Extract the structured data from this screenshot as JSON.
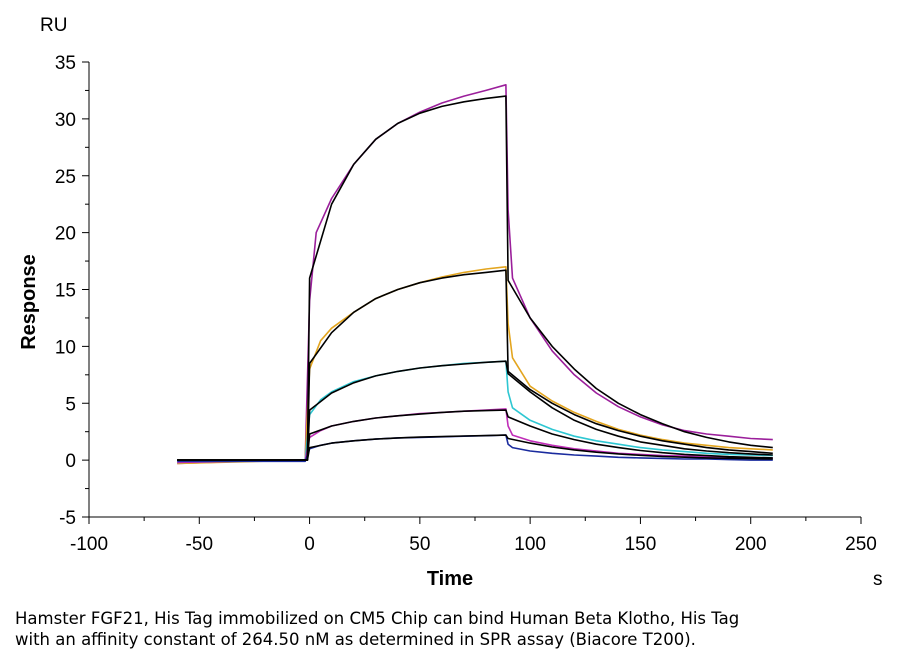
{
  "chart_data": {
    "type": "line",
    "title": "",
    "xlabel": "Time",
    "ylabel": "Response",
    "x_unit": "s",
    "y_unit": "RU",
    "xlim": [
      -100,
      250
    ],
    "ylim": [
      -5,
      35
    ],
    "x_ticks": [
      -100,
      -50,
      0,
      50,
      100,
      150,
      200,
      250
    ],
    "y_ticks": [
      -5,
      0,
      5,
      10,
      15,
      20,
      25,
      30,
      35
    ],
    "grid": false,
    "legend": "none",
    "series": [
      {
        "color": "#9b1f9b",
        "values": [
          [
            -60,
            -0.3
          ],
          [
            -30,
            -0.1
          ],
          [
            -2,
            0
          ],
          [
            0,
            14
          ],
          [
            3,
            20
          ],
          [
            10,
            23
          ],
          [
            20,
            26
          ],
          [
            30,
            28.2
          ],
          [
            40,
            29.6
          ],
          [
            50,
            30.6
          ],
          [
            60,
            31.4
          ],
          [
            70,
            32
          ],
          [
            80,
            32.5
          ],
          [
            89,
            33
          ],
          [
            90,
            22
          ],
          [
            92,
            16
          ],
          [
            100,
            12.5
          ],
          [
            110,
            9.6
          ],
          [
            120,
            7.5
          ],
          [
            130,
            5.9
          ],
          [
            140,
            4.7
          ],
          [
            150,
            3.8
          ],
          [
            160,
            3.1
          ],
          [
            170,
            2.6
          ],
          [
            180,
            2.3
          ],
          [
            190,
            2.1
          ],
          [
            200,
            1.9
          ],
          [
            210,
            1.8
          ]
        ]
      },
      {
        "color": "#000000",
        "values": [
          [
            -60,
            0
          ],
          [
            -1,
            0
          ],
          [
            0,
            16
          ],
          [
            10,
            22.5
          ],
          [
            20,
            26
          ],
          [
            30,
            28.2
          ],
          [
            40,
            29.6
          ],
          [
            50,
            30.5
          ],
          [
            60,
            31.1
          ],
          [
            70,
            31.5
          ],
          [
            80,
            31.8
          ],
          [
            89,
            32
          ],
          [
            90,
            15.8
          ],
          [
            100,
            12.5
          ],
          [
            110,
            10
          ],
          [
            120,
            8
          ],
          [
            130,
            6.3
          ],
          [
            140,
            5
          ],
          [
            150,
            4
          ],
          [
            160,
            3.2
          ],
          [
            170,
            2.5
          ],
          [
            180,
            2
          ],
          [
            190,
            1.6
          ],
          [
            200,
            1.3
          ],
          [
            210,
            1.1
          ]
        ]
      },
      {
        "color": "#e3a51f",
        "values": [
          [
            -60,
            -0.3
          ],
          [
            -2,
            0
          ],
          [
            0,
            8
          ],
          [
            5,
            10.5
          ],
          [
            10,
            11.6
          ],
          [
            20,
            13
          ],
          [
            30,
            14.2
          ],
          [
            40,
            15
          ],
          [
            50,
            15.6
          ],
          [
            60,
            16.1
          ],
          [
            70,
            16.5
          ],
          [
            80,
            16.8
          ],
          [
            89,
            17
          ],
          [
            90,
            12
          ],
          [
            92,
            9
          ],
          [
            100,
            6.5
          ],
          [
            110,
            5.2
          ],
          [
            120,
            4.2
          ],
          [
            130,
            3.4
          ],
          [
            140,
            2.7
          ],
          [
            150,
            2.2
          ],
          [
            160,
            1.8
          ],
          [
            170,
            1.5
          ],
          [
            180,
            1.3
          ],
          [
            190,
            1.1
          ],
          [
            200,
            1
          ],
          [
            210,
            0.9
          ]
        ]
      },
      {
        "color": "#000000",
        "values": [
          [
            -60,
            0
          ],
          [
            -1,
            0
          ],
          [
            0,
            8.5
          ],
          [
            10,
            11.2
          ],
          [
            20,
            13
          ],
          [
            30,
            14.2
          ],
          [
            40,
            15
          ],
          [
            50,
            15.6
          ],
          [
            60,
            16
          ],
          [
            70,
            16.3
          ],
          [
            80,
            16.5
          ],
          [
            89,
            16.7
          ],
          [
            90,
            7.8
          ],
          [
            100,
            6.2
          ],
          [
            110,
            5
          ],
          [
            120,
            4
          ],
          [
            130,
            3.2
          ],
          [
            140,
            2.6
          ],
          [
            150,
            2.1
          ],
          [
            160,
            1.7
          ],
          [
            170,
            1.4
          ],
          [
            180,
            1.1
          ],
          [
            190,
            0.9
          ],
          [
            200,
            0.75
          ],
          [
            210,
            0.6
          ]
        ]
      },
      {
        "color": "#2ec7d2",
        "values": [
          [
            -60,
            -0.2
          ],
          [
            -2,
            0
          ],
          [
            0,
            4
          ],
          [
            5,
            5.3
          ],
          [
            10,
            6
          ],
          [
            20,
            6.9
          ],
          [
            30,
            7.4
          ],
          [
            40,
            7.8
          ],
          [
            50,
            8.1
          ],
          [
            60,
            8.3
          ],
          [
            70,
            8.5
          ],
          [
            80,
            8.6
          ],
          [
            89,
            8.7
          ],
          [
            90,
            6
          ],
          [
            92,
            4.6
          ],
          [
            100,
            3.5
          ],
          [
            110,
            2.7
          ],
          [
            120,
            2.1
          ],
          [
            130,
            1.7
          ],
          [
            140,
            1.4
          ],
          [
            150,
            1.1
          ],
          [
            160,
            0.9
          ],
          [
            170,
            0.75
          ],
          [
            180,
            0.6
          ],
          [
            190,
            0.5
          ],
          [
            200,
            0.45
          ],
          [
            210,
            0.4
          ]
        ]
      },
      {
        "color": "#000000",
        "values": [
          [
            -60,
            0
          ],
          [
            -1,
            0
          ],
          [
            0,
            4.4
          ],
          [
            10,
            5.9
          ],
          [
            20,
            6.8
          ],
          [
            30,
            7.4
          ],
          [
            40,
            7.8
          ],
          [
            50,
            8.1
          ],
          [
            60,
            8.3
          ],
          [
            70,
            8.45
          ],
          [
            80,
            8.6
          ],
          [
            89,
            8.7
          ],
          [
            90,
            7.6
          ],
          [
            100,
            6
          ],
          [
            110,
            4.6
          ],
          [
            120,
            3.5
          ],
          [
            130,
            2.7
          ],
          [
            140,
            2.1
          ],
          [
            150,
            1.6
          ],
          [
            160,
            1.3
          ],
          [
            170,
            1
          ],
          [
            180,
            0.8
          ],
          [
            190,
            0.65
          ],
          [
            200,
            0.55
          ],
          [
            210,
            0.45
          ]
        ]
      },
      {
        "color": "#c02db8",
        "values": [
          [
            -60,
            -0.2
          ],
          [
            -2,
            0
          ],
          [
            0,
            2
          ],
          [
            5,
            2.6
          ],
          [
            10,
            3
          ],
          [
            20,
            3.4
          ],
          [
            30,
            3.7
          ],
          [
            40,
            3.9
          ],
          [
            50,
            4.1
          ],
          [
            60,
            4.2
          ],
          [
            70,
            4.3
          ],
          [
            80,
            4.4
          ],
          [
            89,
            4.5
          ],
          [
            90,
            3
          ],
          [
            92,
            2.2
          ],
          [
            100,
            1.7
          ],
          [
            110,
            1.3
          ],
          [
            120,
            1
          ],
          [
            130,
            0.8
          ],
          [
            140,
            0.6
          ],
          [
            150,
            0.5
          ],
          [
            160,
            0.4
          ],
          [
            170,
            0.35
          ],
          [
            180,
            0.3
          ],
          [
            190,
            0.25
          ],
          [
            200,
            0.2
          ],
          [
            210,
            0.2
          ]
        ]
      },
      {
        "color": "#000000",
        "values": [
          [
            -60,
            0
          ],
          [
            -1,
            0
          ],
          [
            0,
            2.3
          ],
          [
            10,
            3
          ],
          [
            20,
            3.4
          ],
          [
            30,
            3.7
          ],
          [
            40,
            3.9
          ],
          [
            50,
            4.05
          ],
          [
            60,
            4.2
          ],
          [
            70,
            4.3
          ],
          [
            80,
            4.35
          ],
          [
            89,
            4.4
          ],
          [
            90,
            3.8
          ],
          [
            100,
            3
          ],
          [
            110,
            2.3
          ],
          [
            120,
            1.8
          ],
          [
            130,
            1.4
          ],
          [
            140,
            1.1
          ],
          [
            150,
            0.85
          ],
          [
            160,
            0.65
          ],
          [
            170,
            0.5
          ],
          [
            180,
            0.4
          ],
          [
            190,
            0.3
          ],
          [
            200,
            0.25
          ],
          [
            210,
            0.2
          ]
        ]
      },
      {
        "color": "#1a2b9e",
        "values": [
          [
            -60,
            -0.1
          ],
          [
            -2,
            -0.1
          ],
          [
            0,
            1
          ],
          [
            5,
            1.3
          ],
          [
            10,
            1.5
          ],
          [
            20,
            1.7
          ],
          [
            30,
            1.85
          ],
          [
            40,
            1.95
          ],
          [
            50,
            2
          ],
          [
            60,
            2.05
          ],
          [
            70,
            2.1
          ],
          [
            80,
            2.15
          ],
          [
            89,
            2.2
          ],
          [
            90,
            1.4
          ],
          [
            92,
            1.1
          ],
          [
            100,
            0.8
          ],
          [
            110,
            0.6
          ],
          [
            120,
            0.45
          ],
          [
            130,
            0.35
          ],
          [
            140,
            0.25
          ],
          [
            150,
            0.2
          ],
          [
            160,
            0.15
          ],
          [
            170,
            0.1
          ],
          [
            180,
            0.1
          ],
          [
            190,
            0.05
          ],
          [
            200,
            0
          ],
          [
            210,
            0
          ]
        ]
      },
      {
        "color": "#000000",
        "values": [
          [
            -60,
            0
          ],
          [
            -1,
            0
          ],
          [
            0,
            1.1
          ],
          [
            10,
            1.5
          ],
          [
            20,
            1.7
          ],
          [
            30,
            1.85
          ],
          [
            40,
            1.95
          ],
          [
            50,
            2.02
          ],
          [
            60,
            2.07
          ],
          [
            70,
            2.12
          ],
          [
            80,
            2.16
          ],
          [
            89,
            2.2
          ],
          [
            90,
            1.9
          ],
          [
            100,
            1.5
          ],
          [
            110,
            1.15
          ],
          [
            120,
            0.9
          ],
          [
            130,
            0.7
          ],
          [
            140,
            0.55
          ],
          [
            150,
            0.42
          ],
          [
            160,
            0.33
          ],
          [
            170,
            0.26
          ],
          [
            180,
            0.2
          ],
          [
            190,
            0.16
          ],
          [
            200,
            0.13
          ],
          [
            210,
            0.1
          ]
        ]
      }
    ]
  },
  "caption": {
    "line1": "Hamster FGF21, His Tag immobilized on CM5 Chip can bind Human Beta Klotho, His Tag",
    "line2": "with an affinity constant of 264.50 nM as determined in SPR assay (Biacore T200)."
  }
}
